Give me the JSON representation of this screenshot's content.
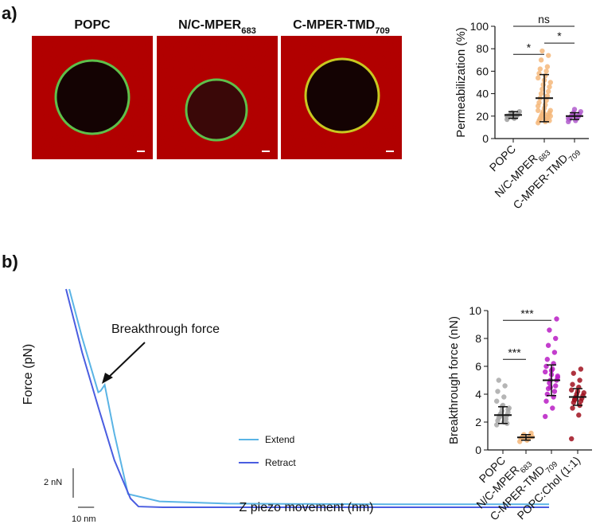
{
  "panel_labels": [
    "a)",
    "b)"
  ],
  "images": [
    {
      "title": "POPC",
      "subscript": null
    },
    {
      "title": "N/C-MPER",
      "subscript": "683"
    },
    {
      "title": "C-MPER-TMD",
      "subscript": "709"
    }
  ],
  "chart_data": [
    {
      "type": "dot",
      "ylabel": "Permeabilization (%)",
      "categories": [
        "POPC",
        "N/C-MPER",
        "C-MPER-TMD"
      ],
      "category_subscripts": [
        null,
        "683",
        "709"
      ],
      "colors": [
        "#9e9e9e",
        "#f5b77a",
        "#b05ccc"
      ],
      "points": [
        [
          17,
          18,
          19,
          19,
          20,
          20,
          21,
          21,
          22,
          22,
          23,
          24,
          19,
          20,
          21
        ],
        [
          14,
          15,
          16,
          17,
          18,
          19,
          20,
          21,
          22,
          23,
          24,
          25,
          27,
          29,
          30,
          32,
          34,
          36,
          38,
          40,
          42,
          44,
          46,
          48,
          50,
          52,
          54,
          56,
          58,
          60,
          62,
          64,
          70,
          74,
          78,
          16,
          18,
          20,
          22,
          25
        ],
        [
          15,
          16,
          17,
          18,
          19,
          19,
          20,
          20,
          21,
          22,
          23,
          24,
          26,
          18,
          20
        ]
      ],
      "means": [
        21,
        36,
        20
      ],
      "sd": [
        3,
        21,
        3
      ],
      "ylim": [
        0,
        100
      ],
      "yticks": [
        0,
        20,
        40,
        60,
        80,
        100
      ],
      "annotations": [
        {
          "text": "*",
          "between": [
            0,
            1
          ]
        },
        {
          "text": "*",
          "between": [
            1,
            2
          ]
        },
        {
          "text": "ns",
          "between": [
            0,
            2
          ]
        }
      ]
    },
    {
      "type": "line",
      "ylabel": "Force (pN)",
      "xlabel": "Z piezo movement (nm)",
      "annotation": "Breakthrough force",
      "xlim": [
        0,
        300
      ],
      "ylim": [
        0,
        15
      ],
      "scale_bars": {
        "y": {
          "value": 2,
          "label": "2 nN"
        },
        "x": {
          "value": 10,
          "label": "10 nm"
        }
      },
      "series": [
        {
          "name": "Extend",
          "color": "#5ab4e5",
          "x": [
            2,
            10,
            20,
            21.5,
            24,
            30,
            38.5,
            58,
            100,
            200,
            300
          ],
          "values": [
            14.8,
            11.5,
            7.8,
            7.9,
            8.3,
            5,
            0.9,
            0.4,
            0.25,
            0.2,
            0.2
          ]
        },
        {
          "name": "Retract",
          "color": "#4a5de0",
          "x": [
            0,
            10,
            20,
            30,
            40,
            45,
            60,
            150,
            300
          ],
          "values": [
            14.8,
            10.5,
            6.8,
            3.2,
            0.6,
            0.05,
            0,
            0,
            0
          ]
        }
      ]
    },
    {
      "type": "dot",
      "ylabel": "Breakthrough force (nN)",
      "categories": [
        "POPC",
        "N/C-MPER",
        "C-MPER-TMD",
        "POPC:Chol (1:1)"
      ],
      "category_subscripts": [
        null,
        "683",
        "709",
        null
      ],
      "colors": [
        "#a8a8a8",
        "#f5b77a",
        "#b81cc4",
        "#a0101e"
      ],
      "points": [
        [
          1.8,
          2,
          2.1,
          2.2,
          2.3,
          2.4,
          2.5,
          2.5,
          2.6,
          2.7,
          2.8,
          3,
          3.2,
          3.5,
          3.8,
          4.2,
          4.6,
          5,
          2.2,
          2.4,
          1.9,
          2.6,
          2.9,
          3.1
        ],
        [
          0.6,
          0.7,
          0.8,
          0.8,
          0.9,
          0.9,
          1,
          1,
          1.1,
          1.2,
          0.85,
          0.95
        ],
        [
          2.4,
          3,
          3.5,
          3.8,
          4,
          4.2,
          4.4,
          4.6,
          4.8,
          5,
          5,
          5.2,
          5.4,
          5.6,
          5.8,
          6,
          6.2,
          6.5,
          7,
          7.5,
          8,
          8.6,
          9.4,
          4.5,
          5.3,
          5.7
        ],
        [
          0.8,
          2.5,
          3,
          3.2,
          3.4,
          3.5,
          3.6,
          3.7,
          3.8,
          3.9,
          4,
          4.1,
          4.2,
          4.3,
          4.5,
          4.7,
          5,
          5.5,
          5.8,
          3.6
        ]
      ],
      "means": [
        2.5,
        0.9,
        5.0,
        3.8
      ],
      "sd": [
        0.6,
        0.2,
        1.1,
        0.6
      ],
      "ylim": [
        0,
        10
      ],
      "yticks": [
        0,
        2,
        4,
        6,
        8,
        10
      ],
      "annotations": [
        {
          "text": "***",
          "between": [
            0,
            1
          ]
        },
        {
          "text": "***",
          "between": [
            0,
            2
          ]
        }
      ]
    }
  ]
}
